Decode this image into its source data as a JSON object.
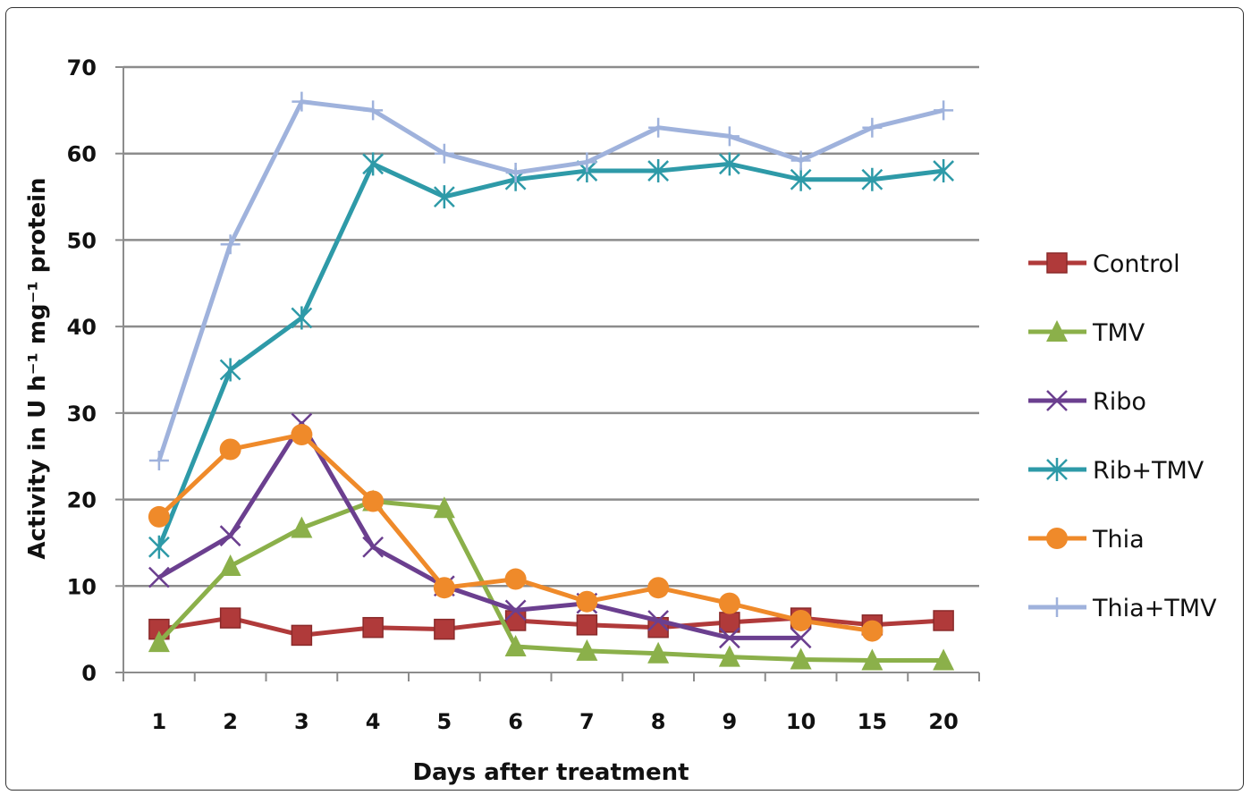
{
  "chart_data": {
    "type": "line",
    "title": "",
    "xlabel": "Days after treatment",
    "ylabel": "Activity in U h⁻¹ mg⁻¹ protein",
    "categories": [
      "1",
      "2",
      "3",
      "4",
      "5",
      "6",
      "7",
      "8",
      "9",
      "10",
      "15",
      "20"
    ],
    "ylim": [
      0,
      70
    ],
    "yticks": [
      "0",
      "10",
      "20",
      "30",
      "40",
      "50",
      "60",
      "70"
    ],
    "grid": true,
    "legend_position": "right",
    "series": [
      {
        "name": "Control",
        "color": "#b03a3a",
        "marker": "square",
        "values": [
          5,
          6.3,
          4.3,
          5.2,
          5,
          6,
          5.5,
          5.2,
          5.8,
          6.3,
          5.5,
          6
        ]
      },
      {
        "name": "TMV",
        "color": "#8bb04a",
        "marker": "triangle",
        "values": [
          3.5,
          12.3,
          16.7,
          19.8,
          19,
          3,
          2.5,
          2.2,
          1.8,
          1.5,
          1.4,
          1.4
        ]
      },
      {
        "name": "Ribo",
        "color": "#6b3f8f",
        "marker": "x",
        "values": [
          11,
          15.8,
          28.8,
          14.5,
          10,
          7.2,
          8,
          6,
          4,
          4,
          null,
          null
        ]
      },
      {
        "name": "Rib+TMV",
        "color": "#2e9aa8",
        "marker": "asterisk",
        "values": [
          14.5,
          35,
          41,
          58.8,
          55,
          57,
          58,
          58,
          58.8,
          57,
          57,
          58
        ]
      },
      {
        "name": "Thia",
        "color": "#ef8a2a",
        "marker": "circle",
        "values": [
          18,
          25.8,
          27.5,
          19.8,
          9.8,
          10.8,
          8.2,
          9.8,
          8,
          6,
          4.8,
          null
        ]
      },
      {
        "name": "Thia+TMV",
        "color": "#9fb2dc",
        "marker": "plus",
        "values": [
          24.5,
          49.5,
          66,
          65,
          60,
          57.8,
          59,
          63,
          62,
          59.2,
          63,
          65
        ]
      }
    ]
  }
}
